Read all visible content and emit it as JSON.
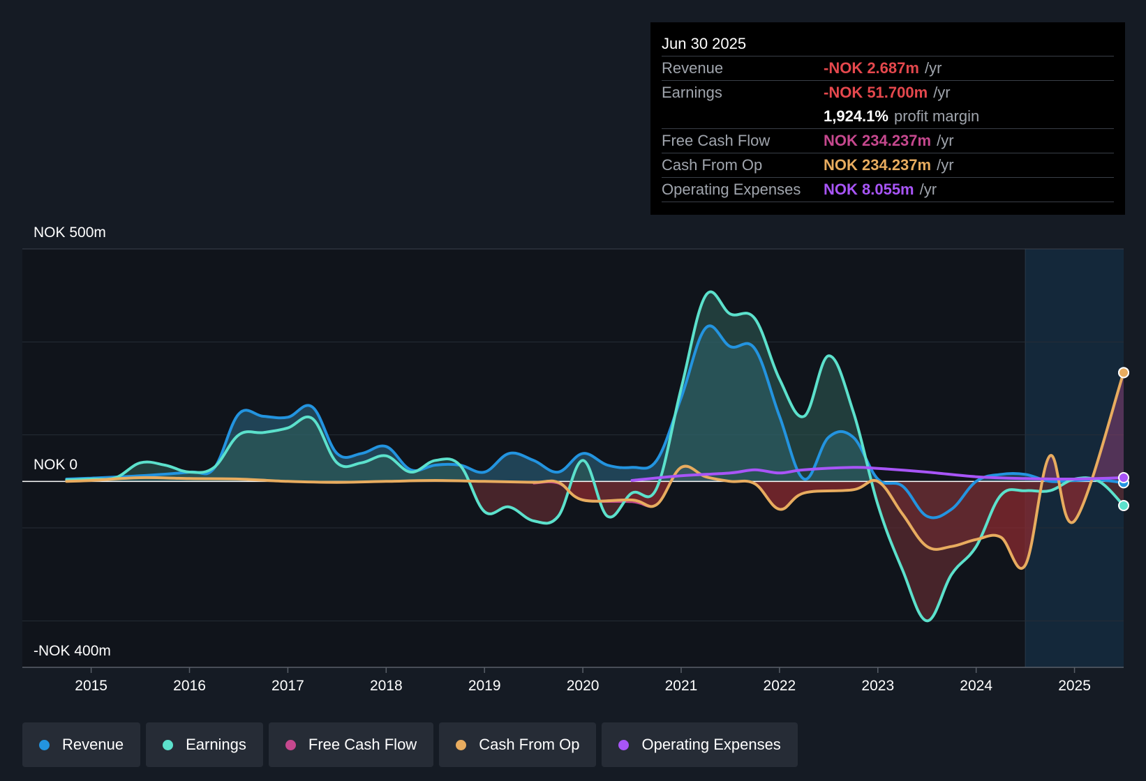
{
  "chart_data": {
    "type": "area",
    "currency": "NOK",
    "y_axis_labels": {
      "top": "NOK 500m",
      "zero": "NOK 0",
      "bottom": "-NOK 400m"
    },
    "ylim": [
      -400,
      500
    ],
    "xlim": [
      2014.3,
      2025.5
    ],
    "forecast_start": 2024.5,
    "x_ticks": [
      "2015",
      "2016",
      "2017",
      "2018",
      "2019",
      "2020",
      "2021",
      "2022",
      "2023",
      "2024",
      "2025"
    ],
    "series": [
      {
        "name": "Revenue",
        "color": "#2394e0",
        "fill": true,
        "points": [
          [
            2014.75,
            5
          ],
          [
            2015.0,
            7
          ],
          [
            2015.5,
            12
          ],
          [
            2016.0,
            20
          ],
          [
            2016.25,
            28
          ],
          [
            2016.5,
            145
          ],
          [
            2016.75,
            140
          ],
          [
            2017.0,
            138
          ],
          [
            2017.25,
            160
          ],
          [
            2017.5,
            60
          ],
          [
            2017.75,
            60
          ],
          [
            2018.0,
            75
          ],
          [
            2018.25,
            25
          ],
          [
            2018.5,
            35
          ],
          [
            2018.75,
            35
          ],
          [
            2019.0,
            20
          ],
          [
            2019.25,
            60
          ],
          [
            2019.5,
            45
          ],
          [
            2019.75,
            20
          ],
          [
            2020.0,
            60
          ],
          [
            2020.25,
            35
          ],
          [
            2020.5,
            30
          ],
          [
            2020.75,
            45
          ],
          [
            2021.0,
            180
          ],
          [
            2021.25,
            330
          ],
          [
            2021.5,
            290
          ],
          [
            2021.75,
            285
          ],
          [
            2022.0,
            140
          ],
          [
            2022.25,
            5
          ],
          [
            2022.5,
            95
          ],
          [
            2022.75,
            95
          ],
          [
            2023.0,
            5
          ],
          [
            2023.25,
            -10
          ],
          [
            2023.5,
            -75
          ],
          [
            2023.75,
            -60
          ],
          [
            2024.0,
            0
          ],
          [
            2024.25,
            15
          ],
          [
            2024.5,
            15
          ],
          [
            2024.75,
            0
          ],
          [
            2025.0,
            2
          ],
          [
            2025.25,
            3
          ],
          [
            2025.5,
            -3
          ]
        ]
      },
      {
        "name": "Earnings",
        "color": "#5ce1cc",
        "fill": true,
        "points": [
          [
            2014.75,
            3
          ],
          [
            2015.0,
            5
          ],
          [
            2015.25,
            8
          ],
          [
            2015.5,
            40
          ],
          [
            2015.75,
            35
          ],
          [
            2016.0,
            20
          ],
          [
            2016.25,
            30
          ],
          [
            2016.5,
            100
          ],
          [
            2016.75,
            105
          ],
          [
            2017.0,
            115
          ],
          [
            2017.25,
            135
          ],
          [
            2017.5,
            40
          ],
          [
            2017.75,
            40
          ],
          [
            2018.0,
            55
          ],
          [
            2018.25,
            20
          ],
          [
            2018.5,
            45
          ],
          [
            2018.75,
            35
          ],
          [
            2019.0,
            -65
          ],
          [
            2019.25,
            -55
          ],
          [
            2019.5,
            -85
          ],
          [
            2019.75,
            -75
          ],
          [
            2020.0,
            45
          ],
          [
            2020.25,
            -75
          ],
          [
            2020.5,
            -25
          ],
          [
            2020.75,
            -15
          ],
          [
            2021.0,
            200
          ],
          [
            2021.25,
            400
          ],
          [
            2021.5,
            360
          ],
          [
            2021.75,
            350
          ],
          [
            2022.0,
            220
          ],
          [
            2022.25,
            140
          ],
          [
            2022.5,
            270
          ],
          [
            2022.75,
            150
          ],
          [
            2023.0,
            -50
          ],
          [
            2023.25,
            -190
          ],
          [
            2023.5,
            -300
          ],
          [
            2023.75,
            -200
          ],
          [
            2024.0,
            -140
          ],
          [
            2024.25,
            -30
          ],
          [
            2024.5,
            -20
          ],
          [
            2024.75,
            -20
          ],
          [
            2025.0,
            5
          ],
          [
            2025.25,
            0
          ],
          [
            2025.5,
            -52
          ]
        ]
      },
      {
        "name": "Free Cash Flow",
        "color": "#c6488e",
        "fill": true,
        "points": [
          [
            2019.5,
            -5
          ],
          [
            2019.75,
            -5
          ],
          [
            2020.0,
            -40
          ],
          [
            2020.5,
            -45
          ],
          [
            2020.75,
            -50
          ],
          [
            2021.0,
            30
          ],
          [
            2021.25,
            10
          ],
          [
            2021.5,
            0
          ],
          [
            2021.75,
            -5
          ],
          [
            2022.0,
            -60
          ],
          [
            2022.25,
            -25
          ],
          [
            2022.75,
            -18
          ],
          [
            2023.0,
            0
          ],
          [
            2023.25,
            -70
          ],
          [
            2023.5,
            -140
          ],
          [
            2023.75,
            -140
          ],
          [
            2024.0,
            -125
          ],
          [
            2024.25,
            -120
          ],
          [
            2024.5,
            -180
          ],
          [
            2024.75,
            55
          ],
          [
            2025.0,
            -85
          ],
          [
            2025.5,
            234
          ]
        ]
      },
      {
        "name": "Cash From Op",
        "color": "#e8ac5f",
        "fill": false,
        "points": [
          [
            2014.75,
            0
          ],
          [
            2015.0,
            2
          ],
          [
            2015.5,
            8
          ],
          [
            2016.0,
            6
          ],
          [
            2016.5,
            5
          ],
          [
            2017.0,
            0
          ],
          [
            2017.5,
            -2
          ],
          [
            2018.0,
            0
          ],
          [
            2018.5,
            2
          ],
          [
            2019.0,
            0
          ],
          [
            2019.5,
            -2
          ],
          [
            2019.75,
            -2
          ],
          [
            2020.0,
            -40
          ],
          [
            2020.5,
            -40
          ],
          [
            2020.75,
            -50
          ],
          [
            2021.0,
            30
          ],
          [
            2021.25,
            10
          ],
          [
            2021.5,
            0
          ],
          [
            2021.75,
            -5
          ],
          [
            2022.0,
            -60
          ],
          [
            2022.25,
            -25
          ],
          [
            2022.75,
            -18
          ],
          [
            2023.0,
            0
          ],
          [
            2023.25,
            -70
          ],
          [
            2023.5,
            -140
          ],
          [
            2023.75,
            -140
          ],
          [
            2024.0,
            -125
          ],
          [
            2024.25,
            -120
          ],
          [
            2024.5,
            -180
          ],
          [
            2024.75,
            55
          ],
          [
            2025.0,
            -85
          ],
          [
            2025.5,
            234
          ]
        ]
      },
      {
        "name": "Operating Expenses",
        "color": "#a855f7",
        "fill": false,
        "points": [
          [
            2020.5,
            2
          ],
          [
            2021.0,
            12
          ],
          [
            2021.5,
            18
          ],
          [
            2021.75,
            25
          ],
          [
            2022.0,
            18
          ],
          [
            2022.25,
            25
          ],
          [
            2022.75,
            30
          ],
          [
            2023.0,
            28
          ],
          [
            2023.5,
            20
          ],
          [
            2024.0,
            10
          ],
          [
            2024.5,
            6
          ],
          [
            2025.0,
            5
          ],
          [
            2025.5,
            8
          ]
        ]
      }
    ]
  },
  "tooltip": {
    "date": "Jun 30 2025",
    "rows": [
      {
        "label": "Revenue",
        "value": "-NOK 2.687m",
        "unit": "/yr",
        "color": "#e5484d"
      },
      {
        "label": "Earnings",
        "value": "-NOK 51.700m",
        "unit": "/yr",
        "color": "#e5484d"
      },
      {
        "label": "",
        "value": "1,924.1%",
        "unit": "profit margin",
        "color": "#ffffff"
      },
      {
        "label": "Free Cash Flow",
        "value": "NOK 234.237m",
        "unit": "/yr",
        "color": "#c6488e"
      },
      {
        "label": "Cash From Op",
        "value": "NOK 234.237m",
        "unit": "/yr",
        "color": "#e8ac5f"
      },
      {
        "label": "Operating Expenses",
        "value": "NOK 8.055m",
        "unit": "/yr",
        "color": "#a855f7"
      }
    ]
  },
  "legend": [
    {
      "label": "Revenue",
      "color": "#2394e0"
    },
    {
      "label": "Earnings",
      "color": "#5ce1cc"
    },
    {
      "label": "Free Cash Flow",
      "color": "#c6488e"
    },
    {
      "label": "Cash From Op",
      "color": "#e8ac5f"
    },
    {
      "label": "Operating Expenses",
      "color": "#a855f7"
    }
  ]
}
